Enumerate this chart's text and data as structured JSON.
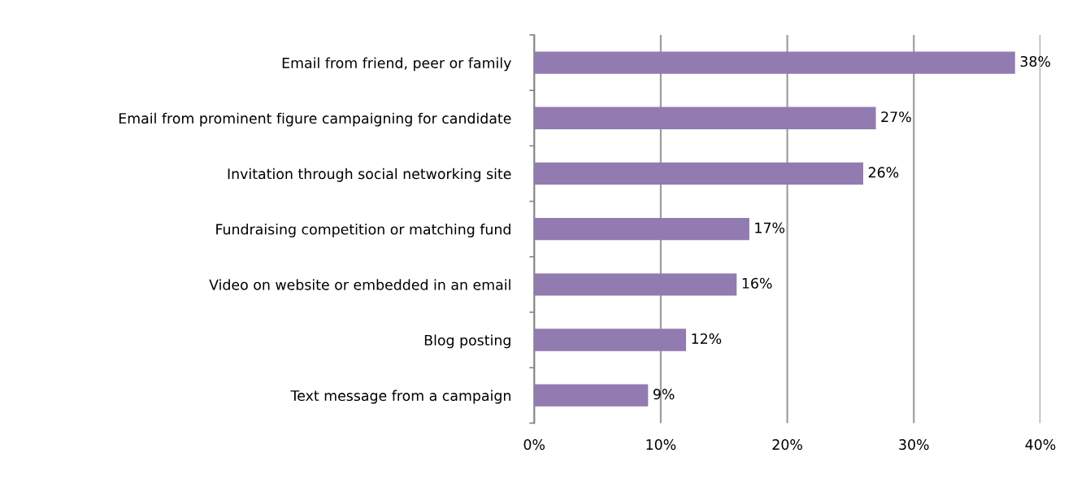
{
  "chart_data": {
    "type": "bar",
    "orientation": "horizontal",
    "categories": [
      "Email from friend, peer or family",
      "Email from prominent figure campaigning for candidate",
      "Invitation through social networking site",
      "Fundraising competition or matching fund",
      "Video on website or embedded in an email",
      "Blog posting",
      "Text message from a campaign"
    ],
    "values": [
      38,
      27,
      26,
      17,
      16,
      12,
      9
    ],
    "value_labels": [
      "38%",
      "27%",
      "26%",
      "17%",
      "16%",
      "12%",
      "9%"
    ],
    "color": "#927bb0",
    "xlim": [
      0,
      40
    ],
    "xticks": [
      {
        "value": 0,
        "label": "0%"
      },
      {
        "value": 10,
        "label": "10%"
      },
      {
        "value": 20,
        "label": "20%"
      },
      {
        "value": 30,
        "label": "30%"
      },
      {
        "value": 40,
        "label": "40%"
      }
    ],
    "grid": "x"
  }
}
